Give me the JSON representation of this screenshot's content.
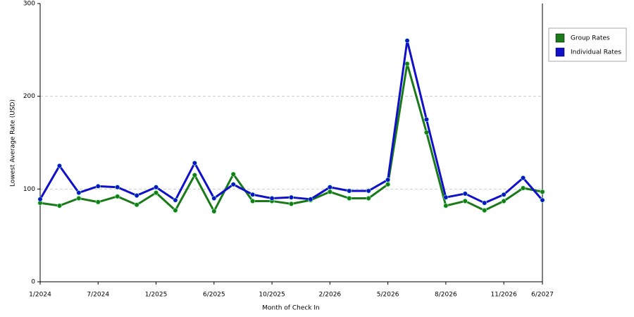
{
  "chart_data": {
    "type": "line",
    "x_label": "Month of Check In",
    "y_label": "Lowest Average Rate (USD)",
    "categories": [
      "1/2024",
      null,
      null,
      "7/2024",
      null,
      null,
      "1/2025",
      null,
      null,
      "6/2025",
      null,
      null,
      "10/2025",
      null,
      null,
      "2/2026",
      null,
      null,
      "5/2026",
      null,
      null,
      "8/2026",
      null,
      null,
      "11/2026",
      null,
      "6/2027"
    ],
    "series": [
      {
        "name": "Group Rates",
        "color": "#1a7a1a",
        "values": [
          85,
          82,
          90,
          86,
          92,
          83,
          96,
          77,
          115,
          76,
          116,
          87,
          87,
          84,
          88,
          97,
          90,
          90,
          105,
          235,
          161,
          82,
          87,
          77,
          87,
          101,
          97
        ]
      },
      {
        "name": "Individual Rates",
        "color": "#1010c8",
        "values": [
          89,
          125,
          96,
          103,
          102,
          93,
          102,
          88,
          128,
          90,
          105,
          94,
          90,
          91,
          89,
          102,
          98,
          98,
          110,
          260,
          175,
          91,
          95,
          85,
          94,
          112,
          88
        ]
      }
    ],
    "ylim": [
      0,
      300
    ],
    "yticks": [
      0,
      100,
      200,
      300
    ],
    "grid": true,
    "legend": "right"
  }
}
